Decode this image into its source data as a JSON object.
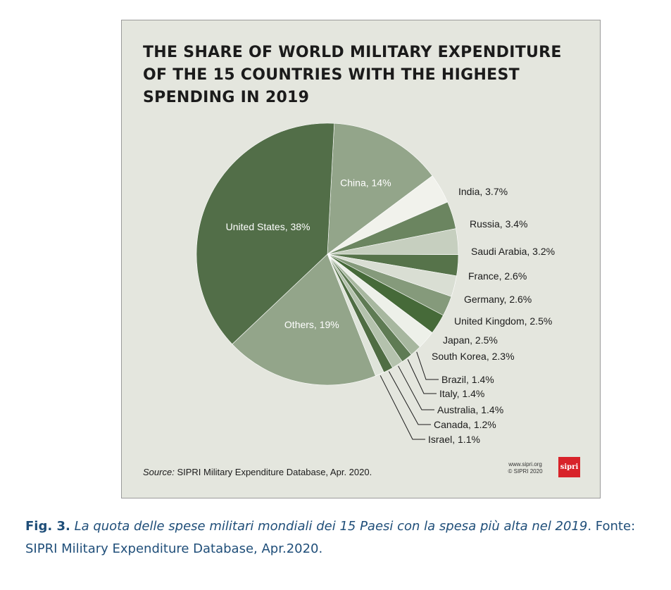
{
  "chart_data": {
    "type": "pie",
    "title": "THE SHARE OF WORLD MILITARY EXPENDITURE OF THE 15 COUNTRIES WITH THE HIGHEST SPENDING IN 2019",
    "slices": [
      {
        "label": "China, 14%",
        "value": 14,
        "color": "#93a58a",
        "label_inside": true
      },
      {
        "label": "India, 3.7%",
        "value": 3.7,
        "color": "#f1f2ec",
        "label_inside": false
      },
      {
        "label": "Russia, 3.4%",
        "value": 3.4,
        "color": "#6b8560",
        "label_inside": false
      },
      {
        "label": "Saudi Arabia, 3.2%",
        "value": 3.2,
        "color": "#c6cfbf",
        "label_inside": false
      },
      {
        "label": "France, 2.6%",
        "value": 2.6,
        "color": "#56734a",
        "label_inside": false
      },
      {
        "label": "Germany, 2.6%",
        "value": 2.6,
        "color": "#d9ded3",
        "label_inside": false
      },
      {
        "label": "United Kingdom, 2.5%",
        "value": 2.5,
        "color": "#859a7b",
        "label_inside": false
      },
      {
        "label": "Japan, 2.5%",
        "value": 2.5,
        "color": "#466a39",
        "label_inside": false
      },
      {
        "label": "South Korea, 2.3%",
        "value": 2.3,
        "color": "#edf0e9",
        "label_inside": false
      },
      {
        "label": "Brazil, 1.4%",
        "value": 1.4,
        "color": "#a7b79f",
        "label_inside": false
      },
      {
        "label": "Italy, 1.4%",
        "value": 1.4,
        "color": "#5f7b54",
        "label_inside": false
      },
      {
        "label": "Australia, 1.4%",
        "value": 1.4,
        "color": "#b4c2ad",
        "label_inside": false
      },
      {
        "label": "Canada, 1.2%",
        "value": 1.2,
        "color": "#4f6d43",
        "label_inside": false
      },
      {
        "label": "Israel, 1.1%",
        "value": 1.1,
        "color": "#dfe4da",
        "label_inside": false
      },
      {
        "label": "Others, 19%",
        "value": 19,
        "color": "#93a58a",
        "label_inside": true
      },
      {
        "label": "United States, 38%",
        "value": 38,
        "color": "#526e48",
        "label_inside": true
      }
    ],
    "legend": "none"
  },
  "source": {
    "prefix": "Source:",
    "text": "SIPRI Military Expenditure Database, Apr. 2020."
  },
  "branding": {
    "url_line": "www.sipri.org",
    "copyright_line": "© SIPRI 2020",
    "logo_text": "sipri",
    "logo_color": "#d8232a"
  },
  "caption": {
    "fig": "Fig. 3.",
    "italic_text": "La quota delle spese militari mondiali dei 15 Paesi con la spesa più alta nel 2019",
    "tail": ". Fonte: SIPRI Military Expenditure Database, Apr.2020."
  }
}
